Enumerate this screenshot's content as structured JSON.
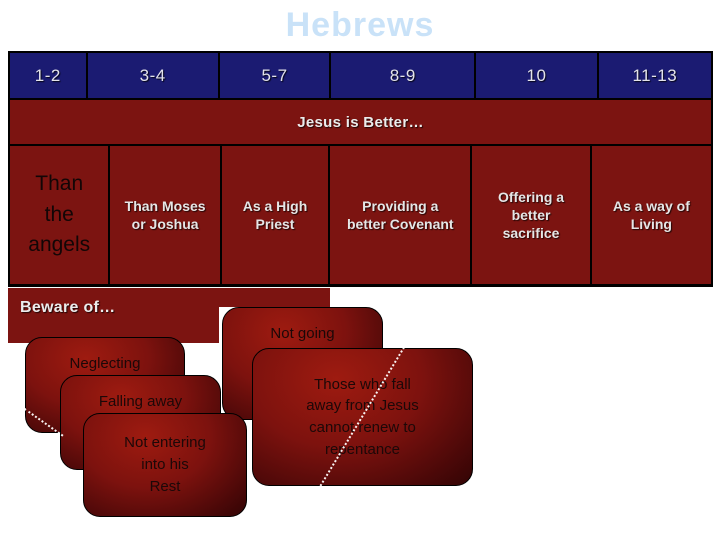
{
  "title": "Hebrews",
  "chapters_row": [
    "1-2",
    "3-4",
    "5-7",
    "8-9",
    "10",
    "11-13"
  ],
  "banner": "Jesus is Better…",
  "better_than": [
    {
      "label": "Than the angels",
      "lines": [
        "Than",
        "the",
        "angels"
      ]
    },
    {
      "label": "Than Moses or Joshua",
      "lines": [
        "Than Moses",
        "or Joshua"
      ]
    },
    {
      "label": "As a High Priest",
      "lines": [
        "As a High",
        "Priest"
      ]
    },
    {
      "label": "Providing a better Covenant",
      "lines": [
        "Providing a",
        "better Covenant"
      ]
    },
    {
      "label": "Offering a better sacrifice",
      "lines": [
        "Offering a",
        "better",
        "sacrifice"
      ]
    },
    {
      "label": "As a way of Living",
      "lines": [
        "As a way of",
        "Living"
      ]
    }
  ],
  "beware": {
    "label": "Beware of…",
    "warnings": [
      {
        "label": "Neglecting",
        "lines": [
          "Neglecting"
        ]
      },
      {
        "label": "Falling away",
        "lines": [
          "Falling away"
        ]
      },
      {
        "label": "Not entering into his Rest",
        "lines": [
          "Not entering",
          "into his",
          "Rest"
        ]
      },
      {
        "label": "Not going",
        "lines": [
          "Not going"
        ]
      },
      {
        "label": "Those who fall away from Jesus cannot renew to repentance",
        "lines": [
          "Those who fall",
          "away from Jesus",
          "cannot renew to",
          "repentance"
        ]
      }
    ]
  },
  "colors": {
    "header_navy": "#1b1b72",
    "dark_red": "#7c1411",
    "box_red_bright": "#9e1b10",
    "box_red_dark": "#320404",
    "title_blue": "#c9e2f8",
    "light_text": "#e6e6e6",
    "dark_text": "#120606"
  }
}
